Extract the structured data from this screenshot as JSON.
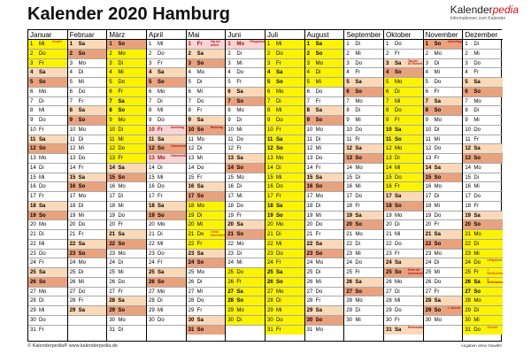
{
  "title": "Kalender 2020 Hamburg",
  "brand": {
    "name_a": "Kalender",
    "name_b": "pedia",
    "tagline": "Informationen zum Kalender"
  },
  "footer": {
    "left": "© Kalenderpedia®   www.kalenderpedia.de",
    "right": "Angaben ohne Gewähr"
  },
  "colors": {
    "saturday": "#fad9b8",
    "sunday": "#e9a27e",
    "holiday": "#f8d4d4",
    "vacation": "#fcf300"
  },
  "months": [
    {
      "name": "Januar",
      "first_weekday": 2,
      "days": 31,
      "vacation": [
        1,
        2,
        3
      ],
      "holidays": {
        "1": "Neujahr"
      }
    },
    {
      "name": "Februar",
      "first_weekday": 5,
      "days": 29,
      "vacation": [],
      "holidays": {}
    },
    {
      "name": "März",
      "first_weekday": 6,
      "days": 31,
      "vacation": [
        2,
        3,
        4,
        5,
        6,
        7,
        8,
        9,
        10,
        11,
        12,
        13
      ],
      "holidays": {}
    },
    {
      "name": "April",
      "first_weekday": 2,
      "days": 30,
      "vacation": [],
      "holidays": {
        "10": "Karfreitag",
        "12": "Ostersonntag",
        "13": "Ostermontag"
      }
    },
    {
      "name": "Mai",
      "first_weekday": 4,
      "days": 31,
      "vacation": [
        18,
        19,
        20,
        21,
        22
      ],
      "holidays": {
        "1": "Tag der Arbeit",
        "10": "Muttertag",
        "21": "Christi Himmelfahrt"
      }
    },
    {
      "name": "Juni",
      "first_weekday": 0,
      "days": 30,
      "vacation": [
        25,
        26,
        27,
        28,
        29,
        30
      ],
      "holidays": {
        "1": "Pfingstmontag"
      }
    },
    {
      "name": "Juli",
      "first_weekday": 2,
      "days": 31,
      "vacation": [
        1,
        2,
        3,
        4,
        5,
        6,
        7,
        8,
        9,
        10,
        11,
        12,
        13,
        14,
        15,
        16,
        17,
        18,
        19,
        20,
        21,
        22,
        23,
        24,
        25,
        26,
        27,
        28,
        29,
        30,
        31
      ],
      "holidays": {}
    },
    {
      "name": "August",
      "first_weekday": 5,
      "days": 31,
      "vacation": [
        1,
        2,
        3,
        4,
        5
      ],
      "holidays": {}
    },
    {
      "name": "September",
      "first_weekday": 1,
      "days": 30,
      "vacation": [],
      "holidays": {}
    },
    {
      "name": "Oktober",
      "first_weekday": 3,
      "days": 31,
      "vacation": [
        5,
        6,
        7,
        8,
        9,
        10,
        11,
        12,
        13,
        14,
        15,
        16
      ],
      "holidays": {
        "3": "Tag der Dt. Einheit",
        "25": "Ende der Sommerzeit",
        "31": "Reformationstag"
      }
    },
    {
      "name": "November",
      "first_weekday": 6,
      "days": 30,
      "vacation": [],
      "holidays": {
        "1": "Allerheiligen",
        "29": "1. Advent"
      }
    },
    {
      "name": "Dezember",
      "first_weekday": 1,
      "days": 31,
      "vacation": [
        21,
        22,
        23,
        24,
        25,
        26,
        27,
        28,
        29,
        30,
        31
      ],
      "holidays": {
        "24": "Heiligabend",
        "25": "1. Weihnachtstag",
        "26": "2. Weihnachtstag",
        "31": "Silvester"
      }
    }
  ],
  "weekday_abbr": [
    "Mo",
    "Di",
    "Mi",
    "Do",
    "Fr",
    "Sa",
    "So"
  ]
}
